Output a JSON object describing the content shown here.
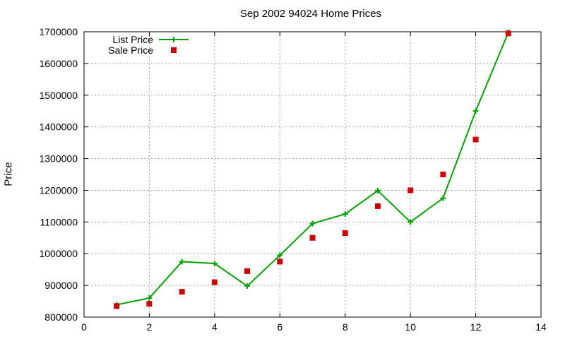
{
  "chart_data": {
    "type": "line",
    "title": "Sep 2002 94024 Home Prices",
    "xlabel": "",
    "ylabel": "Price",
    "xlim": [
      0,
      14
    ],
    "ylim": [
      800000,
      1700000
    ],
    "x_ticks": [
      0,
      2,
      4,
      6,
      8,
      10,
      12,
      14
    ],
    "y_ticks": [
      800000,
      900000,
      1000000,
      1100000,
      1200000,
      1300000,
      1400000,
      1500000,
      1600000,
      1700000
    ],
    "grid": true,
    "legend_position": "top-left",
    "series": [
      {
        "name": "List Price",
        "style": "linespoints",
        "marker": "plus",
        "color": "#00a000",
        "x": [
          1,
          2,
          3,
          4,
          5,
          6,
          7,
          8,
          9,
          10,
          11,
          12,
          13
        ],
        "values": [
          839000,
          860000,
          975000,
          969000,
          898000,
          995000,
          1095000,
          1125000,
          1199000,
          1100000,
          1175000,
          1450000,
          1698000
        ]
      },
      {
        "name": "Sale Price",
        "style": "points",
        "marker": "square",
        "color": "#cc0000",
        "x": [
          1,
          2,
          3,
          4,
          5,
          6,
          7,
          8,
          9,
          10,
          11,
          12,
          13
        ],
        "values": [
          835000,
          842000,
          880000,
          910000,
          945000,
          975000,
          1050000,
          1065000,
          1150000,
          1200000,
          1250000,
          1360000,
          1695000
        ]
      }
    ]
  }
}
